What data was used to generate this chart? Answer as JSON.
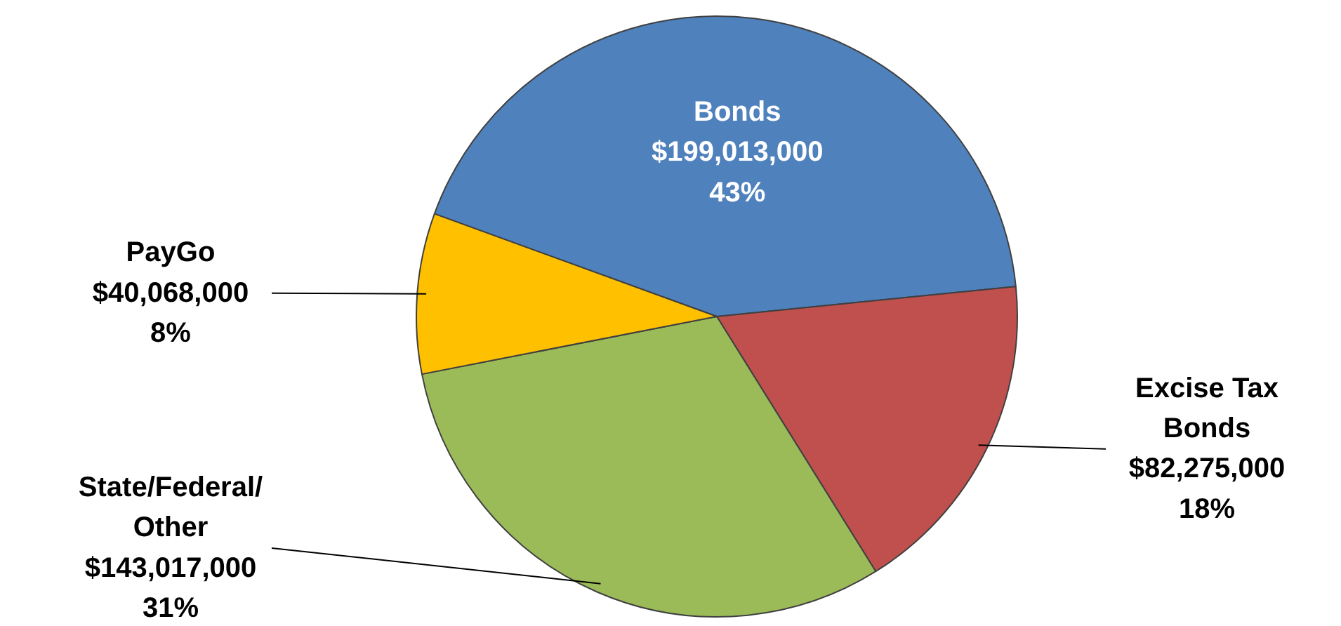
{
  "chart_data": {
    "type": "pie",
    "categories": [
      "Bonds",
      "Excise Tax Bonds",
      "State/Federal/Other",
      "PayGo"
    ],
    "values": [
      199013000,
      82275000,
      143017000,
      40068000
    ],
    "colors": [
      "#4f81bd",
      "#c0504d",
      "#9bbb59",
      "#ffc000"
    ],
    "value_labels": [
      "$199,013,000\n43%",
      "$82,275,000\n18%",
      "$143,017,000\n31%",
      "$40,068,000\n8%"
    ]
  }
}
